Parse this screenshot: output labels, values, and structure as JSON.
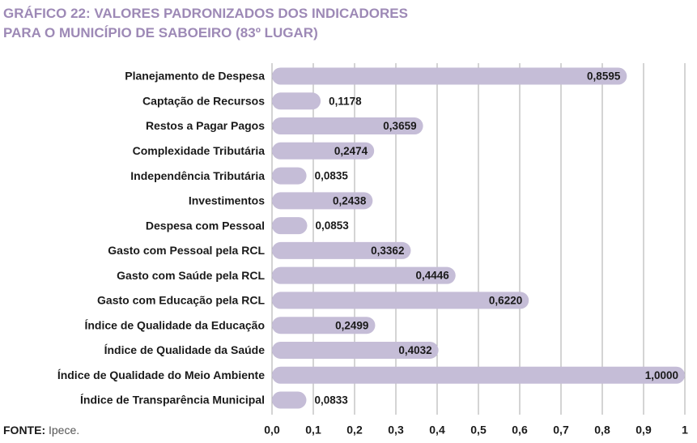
{
  "chart_data": {
    "type": "hbar",
    "title": [
      "GRÁFICO 22: VALORES PADRONIZADOS DOS INDICADORES",
      "PARA O MUNICÍPIO DE SABOEIRO (83º LUGAR)"
    ],
    "categories": [
      "Planejamento de Despesa",
      "Captação de Recursos",
      "Restos a Pagar Pagos",
      "Complexidade Tributária",
      "Independência Tributária",
      "Investimentos",
      "Despesa com Pessoal",
      "Gasto com Pessoal pela RCL",
      "Gasto com Saúde pela RCL",
      "Gasto com Educação pela RCL",
      "Índice de Qualidade da Educação",
      "Índice de Qualidade da Saúde",
      "Índice de Qualidade do Meio Ambiente",
      "Índice de Transparência Municipal"
    ],
    "values": [
      0.8595,
      0.1178,
      0.3659,
      0.2474,
      0.0835,
      0.2438,
      0.0853,
      0.3362,
      0.4446,
      0.622,
      0.2499,
      0.4032,
      1.0,
      0.0833
    ],
    "value_labels": [
      "0,8595",
      "0,1178",
      "0,3659",
      "0,2474",
      "0,0835",
      "0,2438",
      "0,0853",
      "0,3362",
      "0,4446",
      "0,6220",
      "0,2499",
      "0,4032",
      "1,0000",
      "0,0833"
    ],
    "color": "#c5bdd7",
    "xlim": [
      0,
      1
    ],
    "xticks": [
      {
        "value": 0,
        "label": "0,0"
      },
      {
        "value": 0.1,
        "label": "0,1"
      },
      {
        "value": 0.2,
        "label": "0,2"
      },
      {
        "value": 0.3,
        "label": "0,3"
      },
      {
        "value": 0.4,
        "label": "0,4"
      },
      {
        "value": 0.5,
        "label": "0,5"
      },
      {
        "value": 0.6,
        "label": "0,6"
      },
      {
        "value": 0.7,
        "label": "0,7"
      },
      {
        "value": 0.8,
        "label": "0,8"
      },
      {
        "value": 0.9,
        "label": "0,9"
      },
      1
    ],
    "grid": true,
    "source_label": "FONTE:",
    "source_text": "Ipece."
  }
}
